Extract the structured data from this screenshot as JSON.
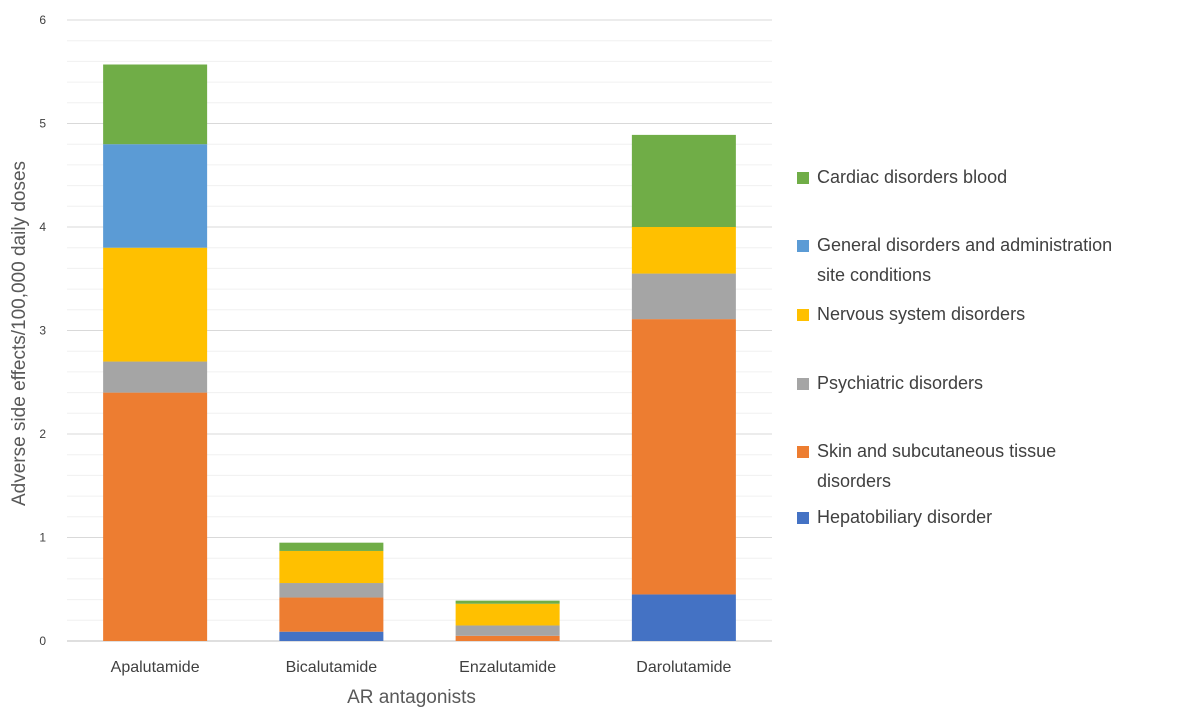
{
  "chart_data": {
    "type": "bar",
    "stacked": true,
    "title": "",
    "xlabel": "AR antagonists",
    "ylabel": "Adverse side effects/100,000 daily doses",
    "ylim": [
      0,
      6
    ],
    "yticks": [
      0,
      1,
      2,
      3,
      4,
      5,
      6
    ],
    "grid": true,
    "legend_position": "right",
    "categories": [
      "Apalutamide",
      "Bicalutamide",
      "Enzalutamide",
      "Darolutamide"
    ],
    "series": [
      {
        "name": "Hepatobiliary disorder",
        "color": "#4472C4",
        "values": [
          0,
          0.09,
          0,
          0.45
        ]
      },
      {
        "name": "Skin and subcutaneous tissue disorders",
        "color": "#ED7D31",
        "values": [
          2.4,
          0.33,
          0.05,
          2.66
        ]
      },
      {
        "name": "Psychiatric disorders",
        "color": "#A5A5A5",
        "values": [
          0.3,
          0.14,
          0.1,
          0.44
        ]
      },
      {
        "name": "Nervous system disorders",
        "color": "#FFC000",
        "values": [
          1.1,
          0.31,
          0.21,
          0.45
        ]
      },
      {
        "name": "General disorders and administration site conditions",
        "color": "#5B9BD5",
        "values": [
          1.0,
          0,
          0,
          0
        ]
      },
      {
        "name": "Cardiac disorders blood",
        "color": "#70AD47",
        "values": [
          0.77,
          0.08,
          0.03,
          0.89
        ]
      }
    ],
    "legend_order": [
      5,
      4,
      3,
      2,
      1,
      0
    ]
  }
}
